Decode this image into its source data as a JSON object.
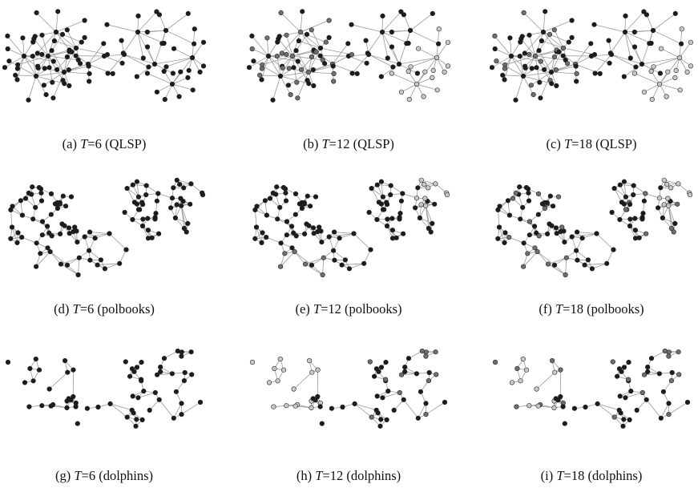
{
  "figure": {
    "colors": {
      "dark": "#1c1c1c",
      "mid": "#6f6f6f",
      "light": "#c9c9c9",
      "edge": "#9a9a9a"
    },
    "panels": [
      {
        "id": "a",
        "letter": "(a)",
        "var": "T",
        "value": "=6",
        "dataset": "(QLSP)",
        "network": "qlsp",
        "T": 6
      },
      {
        "id": "b",
        "letter": "(b)",
        "var": "T",
        "value": "=12",
        "dataset": "(QLSP)",
        "network": "qlsp",
        "T": 12
      },
      {
        "id": "c",
        "letter": "(c)",
        "var": "T",
        "value": "=18",
        "dataset": "(QLSP)",
        "network": "qlsp",
        "T": 18
      },
      {
        "id": "d",
        "letter": "(d)",
        "var": "T",
        "value": "=6",
        "dataset": "(polbooks)",
        "network": "polbooks",
        "T": 6
      },
      {
        "id": "e",
        "letter": "(e)",
        "var": "T",
        "value": "=12",
        "dataset": "(polbooks)",
        "network": "polbooks",
        "T": 12
      },
      {
        "id": "f",
        "letter": "(f)",
        "var": "T",
        "value": "=18",
        "dataset": "(polbooks)",
        "network": "polbooks",
        "T": 18
      },
      {
        "id": "g",
        "letter": "(g)",
        "var": "T",
        "value": "=6",
        "dataset": "(dolphins)",
        "network": "dolphins",
        "T": 6
      },
      {
        "id": "h",
        "letter": "(h)",
        "var": "T",
        "value": "=12",
        "dataset": "(dolphins)",
        "network": "dolphins",
        "T": 12
      },
      {
        "id": "i",
        "letter": "(i)",
        "var": "T",
        "value": "=18",
        "dataset": "(dolphins)",
        "network": "dolphins",
        "T": 18
      }
    ]
  }
}
